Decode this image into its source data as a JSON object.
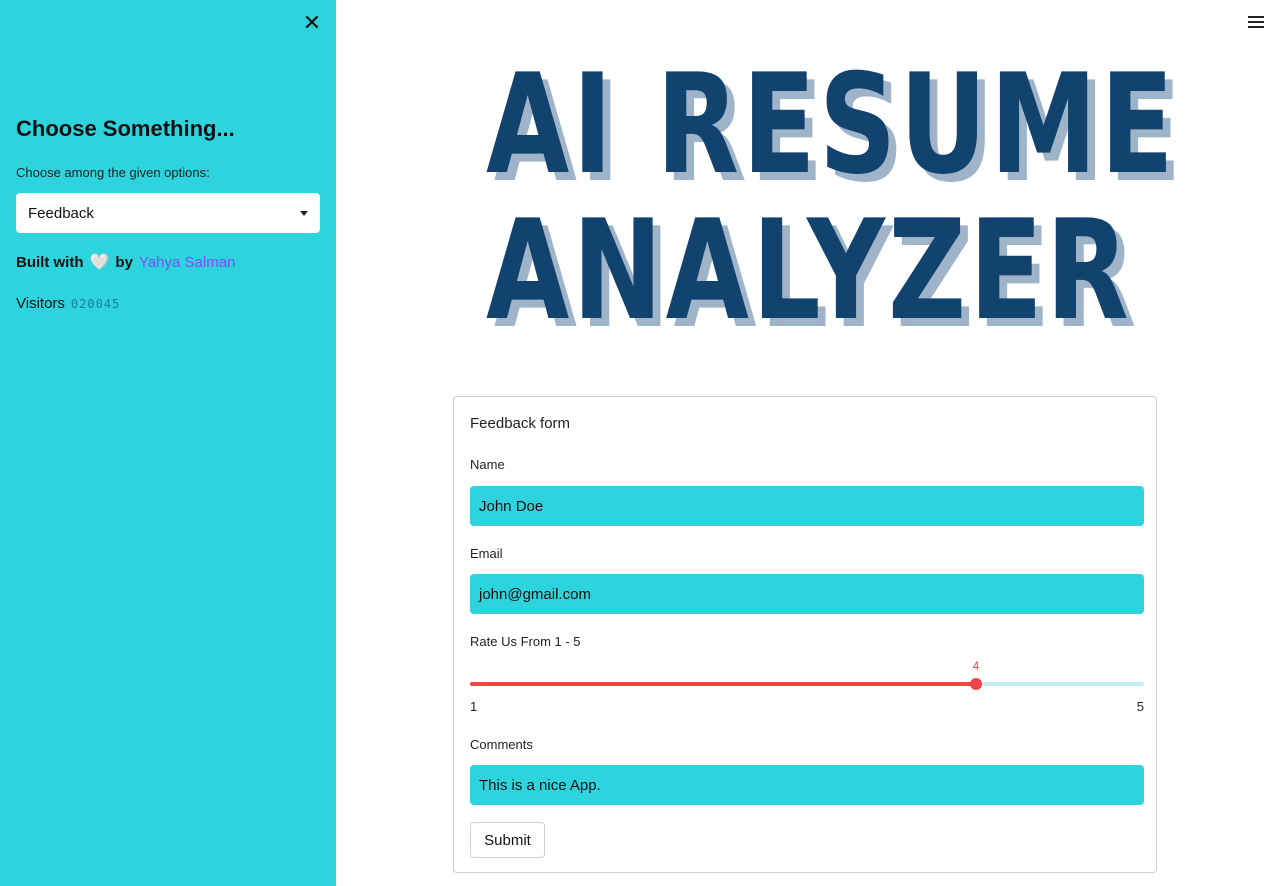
{
  "sidebar": {
    "close_icon": "close-icon",
    "title": "Choose Something...",
    "select_label": "Choose among the given options:",
    "select_value": "Feedback",
    "built_with": "Built with",
    "heart": "🤍",
    "by": "by",
    "author": "Yahya Salman",
    "visitors_label": "Visitors",
    "visitors_count": "020045"
  },
  "header": {
    "menu_icon": "hamburger-menu-icon"
  },
  "hero": {
    "line1": "AI RESUME",
    "line2": "ANALYZER"
  },
  "form": {
    "title": "Feedback form",
    "name_label": "Name",
    "name_value": "John Doe",
    "email_label": "Email",
    "email_value": "john@gmail.com",
    "rating_label": "Rate Us From 1 - 5",
    "rating": {
      "min": "1",
      "max": "5",
      "value": "4"
    },
    "comments_label": "Comments",
    "comments_value": "This is a nice App.",
    "submit_label": "Submit"
  },
  "colors": {
    "sidebar_bg": "#2dd4dd",
    "title_blue": "#12436f",
    "title_shadow": "#9fb4c9",
    "slider_red": "#ef4444",
    "author_purple": "#7c4dff"
  }
}
